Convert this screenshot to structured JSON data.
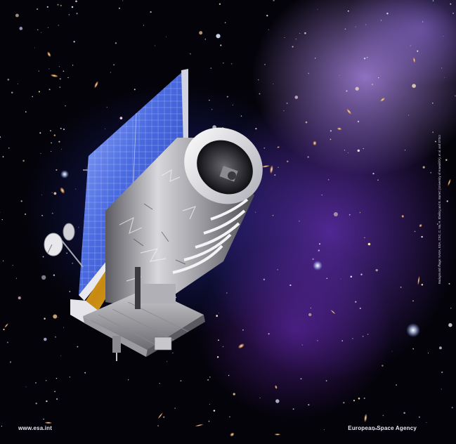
{
  "image": {
    "caption_left": "www.esa.int",
    "caption_right": "European Space Agency",
    "credit": "Background image: NASA, ESA, CXC, C. Ma, H. Ebeling and E. Barrett (University of Hawaii/IfA), et al. and STScI"
  },
  "colors": {
    "space_dark": "#04030a",
    "nebula_purple": "#9b5cf0",
    "nebula_blue": "#2a35c0",
    "solar_panel": "#3a5cd8",
    "gold_foil": "#d8a018",
    "body_silver": "#c8c8cc"
  }
}
